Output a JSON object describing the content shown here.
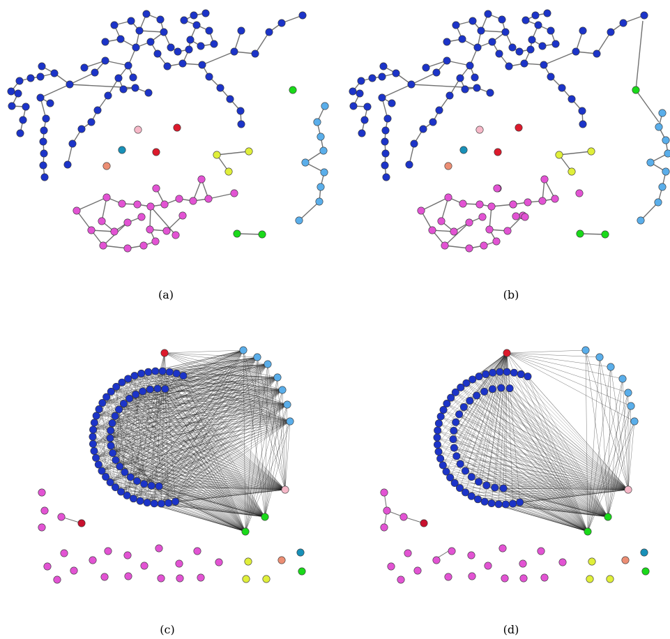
{
  "panels": [
    {
      "id": "a",
      "caption": "(a)"
    },
    {
      "id": "b",
      "caption": "(b)"
    },
    {
      "id": "c",
      "caption": "(c)"
    },
    {
      "id": "d",
      "caption": "(d)"
    }
  ],
  "colors": {
    "dark_blue": "#1c34c8",
    "light_blue": "#5aaeea",
    "magenta": "#e253d3",
    "red": "#dc1a2c",
    "crimson": "#c8102e",
    "green": "#1ad91a",
    "yellow": "#e0ef3a",
    "pink": "#f6b8c8",
    "salmon": "#ec8e74",
    "teal": "#1890b8",
    "edge_gray": "#707070",
    "edge_dark": "#1a1a1a",
    "node_stroke": "#333333"
  }
}
